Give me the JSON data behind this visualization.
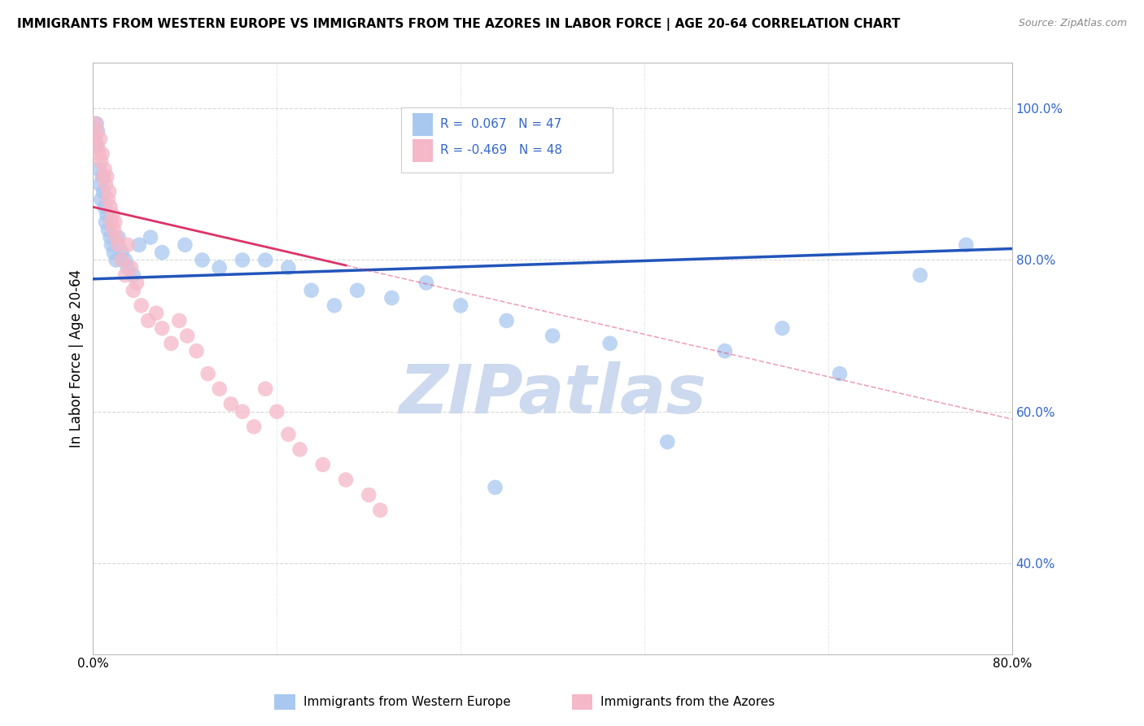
{
  "title": "IMMIGRANTS FROM WESTERN EUROPE VS IMMIGRANTS FROM THE AZORES IN LABOR FORCE | AGE 20-64 CORRELATION CHART",
  "source": "Source: ZipAtlas.com",
  "xlabel_blue": "Immigrants from Western Europe",
  "xlabel_pink": "Immigrants from the Azores",
  "ylabel": "In Labor Force | Age 20-64",
  "xlim": [
    0.0,
    0.8
  ],
  "ylim": [
    0.28,
    1.06
  ],
  "xticks": [
    0.0,
    0.16,
    0.32,
    0.48,
    0.64,
    0.8
  ],
  "xtick_labels": [
    "0.0%",
    "",
    "",
    "",
    "",
    "80.0%"
  ],
  "ytick_right": [
    0.4,
    0.6,
    0.8,
    1.0
  ],
  "ytick_right_labels": [
    "40.0%",
    "60.0%",
    "80.0%",
    "100.0%"
  ],
  "legend_r_blue": "R =  0.067",
  "legend_n_blue": "N = 47",
  "legend_r_pink": "R = -0.469",
  "legend_n_pink": "N = 48",
  "blue_color": "#a8c8f0",
  "pink_color": "#f5b8c8",
  "trend_blue_color": "#2255bb",
  "trend_pink_color": "#dd3366",
  "label_color": "#3366cc",
  "watermark_color": "#ccd9ee",
  "background_color": "#ffffff",
  "grid_color": "#d8d8d8",
  "blue_scatter_x": [
    0.002,
    0.003,
    0.004,
    0.005,
    0.006,
    0.007,
    0.008,
    0.009,
    0.01,
    0.011,
    0.012,
    0.013,
    0.015,
    0.016,
    0.018,
    0.02,
    0.022,
    0.025,
    0.028,
    0.03,
    0.035,
    0.04,
    0.05,
    0.06,
    0.08,
    0.095,
    0.11,
    0.13,
    0.15,
    0.17,
    0.19,
    0.21,
    0.23,
    0.26,
    0.29,
    0.32,
    0.36,
    0.4,
    0.45,
    0.5,
    0.55,
    0.6,
    0.65,
    0.72,
    0.76,
    0.003,
    0.35
  ],
  "blue_scatter_y": [
    0.96,
    0.98,
    0.97,
    0.92,
    0.9,
    0.88,
    0.91,
    0.89,
    0.87,
    0.85,
    0.86,
    0.84,
    0.83,
    0.82,
    0.81,
    0.8,
    0.83,
    0.81,
    0.8,
    0.79,
    0.78,
    0.82,
    0.83,
    0.81,
    0.82,
    0.8,
    0.79,
    0.8,
    0.8,
    0.79,
    0.76,
    0.74,
    0.76,
    0.75,
    0.77,
    0.74,
    0.72,
    0.7,
    0.69,
    0.56,
    0.68,
    0.71,
    0.65,
    0.78,
    0.82,
    0.95,
    0.5
  ],
  "pink_scatter_x": [
    0.001,
    0.002,
    0.003,
    0.004,
    0.005,
    0.006,
    0.007,
    0.008,
    0.009,
    0.01,
    0.011,
    0.012,
    0.013,
    0.014,
    0.015,
    0.016,
    0.017,
    0.018,
    0.019,
    0.02,
    0.022,
    0.025,
    0.028,
    0.03,
    0.033,
    0.035,
    0.038,
    0.042,
    0.048,
    0.055,
    0.06,
    0.068,
    0.075,
    0.082,
    0.09,
    0.1,
    0.11,
    0.12,
    0.13,
    0.14,
    0.15,
    0.16,
    0.17,
    0.18,
    0.2,
    0.22,
    0.24,
    0.25
  ],
  "pink_scatter_y": [
    0.96,
    0.98,
    0.97,
    0.95,
    0.94,
    0.96,
    0.93,
    0.94,
    0.91,
    0.92,
    0.9,
    0.91,
    0.88,
    0.89,
    0.87,
    0.85,
    0.86,
    0.84,
    0.85,
    0.83,
    0.82,
    0.8,
    0.78,
    0.82,
    0.79,
    0.76,
    0.77,
    0.74,
    0.72,
    0.73,
    0.71,
    0.69,
    0.72,
    0.7,
    0.68,
    0.65,
    0.63,
    0.61,
    0.6,
    0.58,
    0.63,
    0.6,
    0.57,
    0.55,
    0.53,
    0.51,
    0.49,
    0.47
  ],
  "blue_trend_x": [
    0.0,
    0.8
  ],
  "blue_trend_y": [
    0.775,
    0.815
  ],
  "pink_trend_x": [
    0.0,
    0.8
  ],
  "pink_trend_y": [
    0.87,
    0.59
  ]
}
